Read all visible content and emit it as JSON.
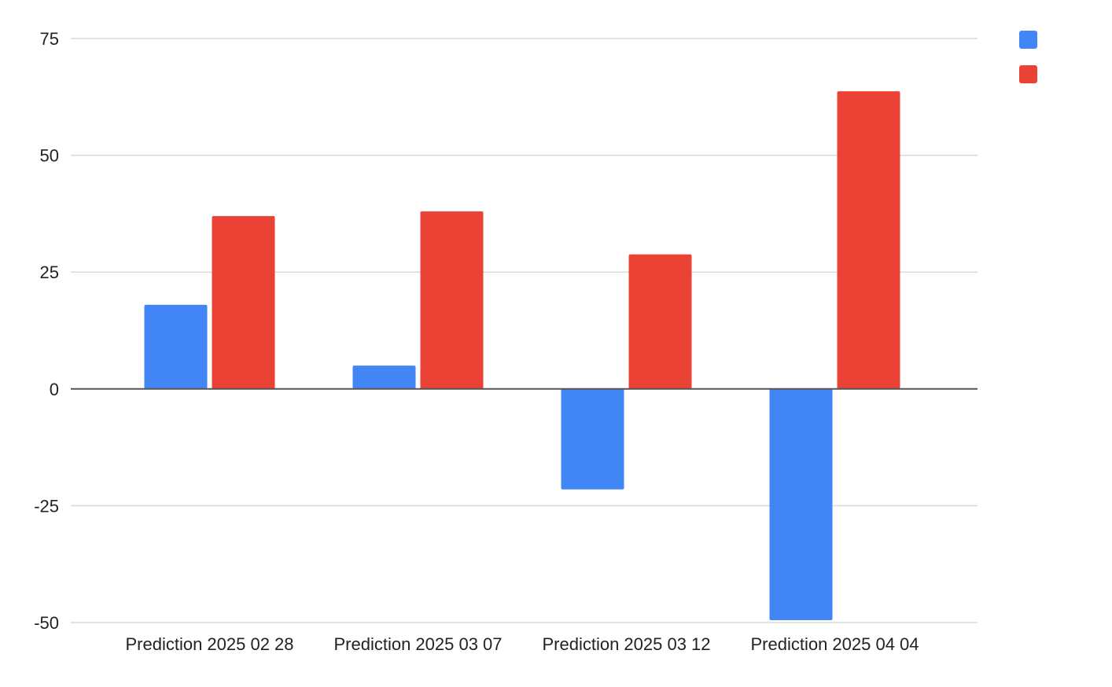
{
  "chart_data": {
    "type": "bar",
    "title": "",
    "xlabel": "",
    "ylabel": "",
    "categories": [
      "Prediction 2025 02 28",
      "Prediction 2025 03 07",
      "Prediction 2025 03 12",
      "Prediction 2025 04 04"
    ],
    "series": [
      {
        "values": [
          18,
          5,
          -21.5,
          -49.5
        ],
        "color": "#4285f4"
      },
      {
        "values": [
          37,
          38,
          28.8,
          63.7
        ],
        "color": "#ea4335"
      }
    ],
    "ylim": [
      -50,
      75
    ],
    "yticks": [
      75,
      50,
      25,
      0,
      -25,
      -50
    ],
    "grid": true,
    "legend_position": "top-right"
  }
}
